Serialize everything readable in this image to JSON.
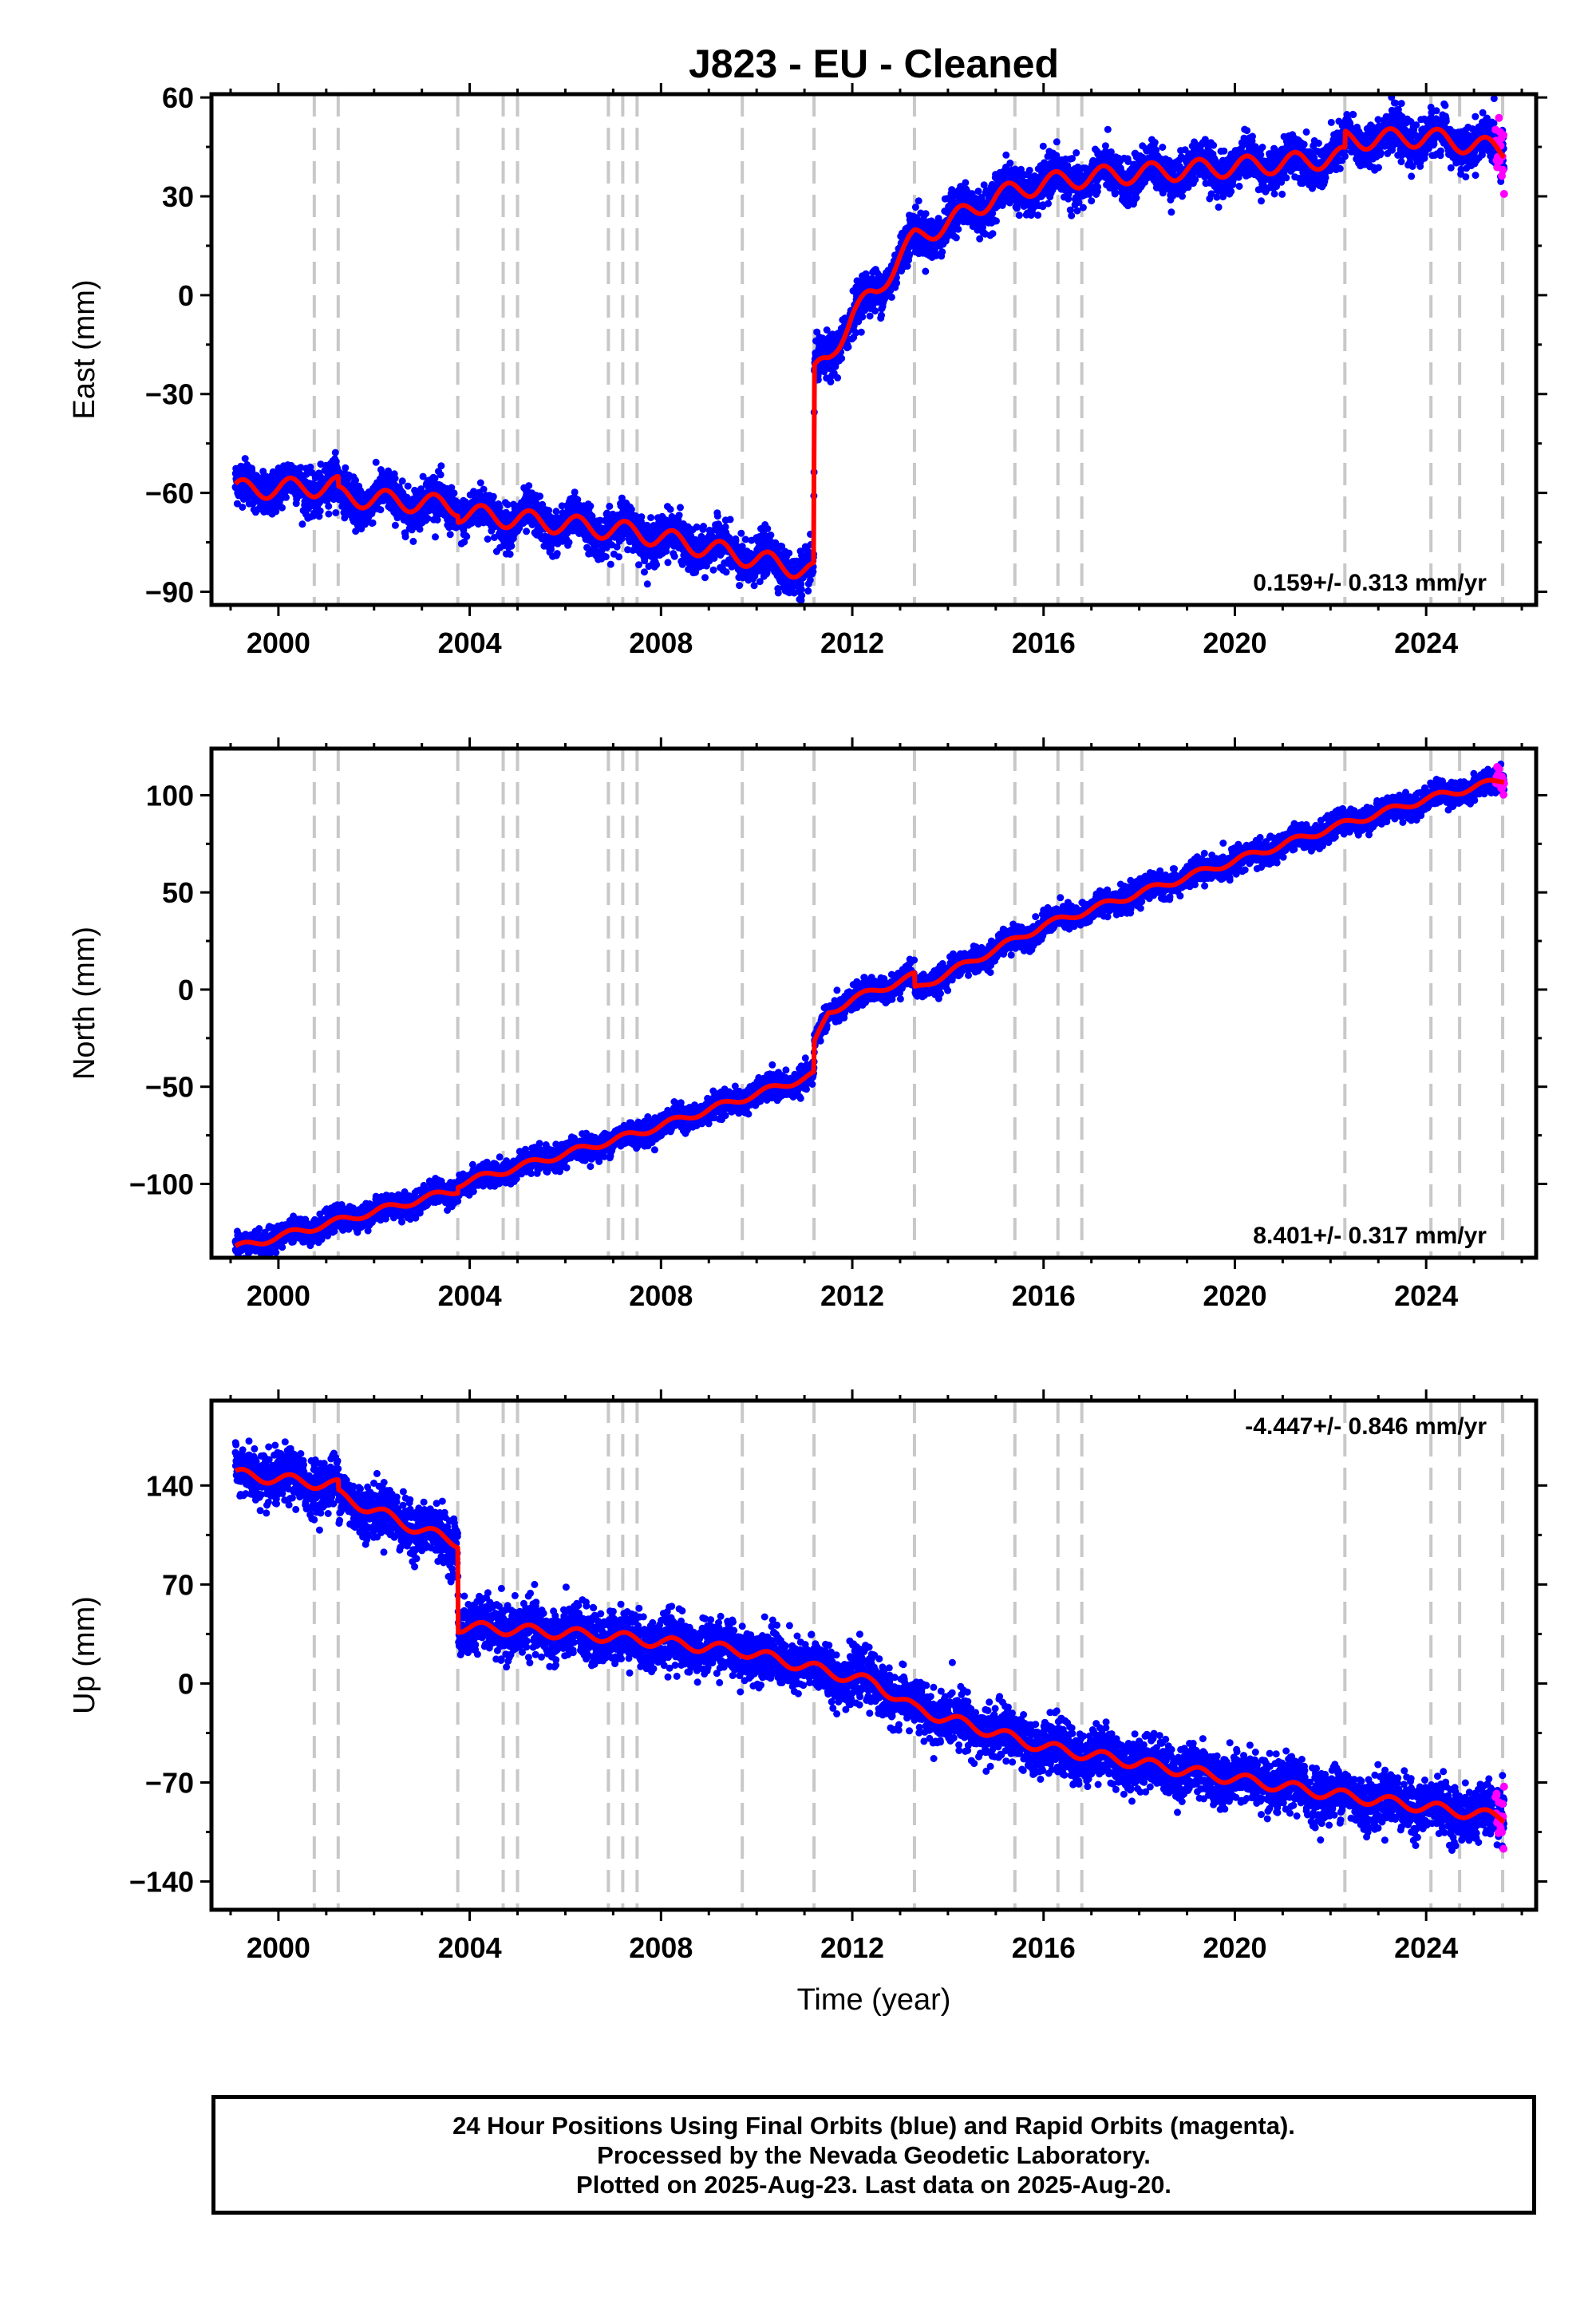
{
  "colors": {
    "final": "#0000ff",
    "rapid": "#ff00ff",
    "model": "#ff0000",
    "breaks": "#c8c8c8"
  },
  "chart_data": {
    "type": "scatter",
    "title": "J823  - EU - Cleaned",
    "xlabel": "Time (year)",
    "xlim": [
      1998.6,
      2026.3
    ],
    "xticks": [
      2000,
      2004,
      2008,
      2012,
      2016,
      2020,
      2024
    ],
    "xtick_labels": [
      "2000",
      "2004",
      "2008",
      "2012",
      "2016",
      "2020",
      "2024"
    ],
    "grid": false,
    "data_start": 1999.1,
    "data_end": 2025.63,
    "rapid_start": 2025.45,
    "breaks": [
      2000.75,
      2001.25,
      2003.75,
      2004.7,
      2005.0,
      2006.9,
      2007.2,
      2007.5,
      2009.7,
      2011.2,
      2013.3,
      2015.4,
      2016.3,
      2016.8,
      2022.3,
      2024.1,
      2024.7,
      2025.6
    ],
    "panels": [
      {
        "key": "east",
        "ylabel": "East (mm)",
        "ylim": [
          -94,
          61
        ],
        "yticks": [
          60,
          30,
          0,
          -30,
          -60,
          -90
        ],
        "ytick_labels": [
          "60",
          "30",
          "0",
          "−30",
          "−60",
          "−90"
        ],
        "rate": "0.159+/- 0.313 mm/yr",
        "rate_position": "bottom-right",
        "noise": 3.2,
        "seasonal": 3.0,
        "trend_knots": [
          [
            1999.1,
            -59
          ],
          [
            2001.25,
            -58
          ],
          [
            2001.26,
            -61
          ],
          [
            2003.75,
            -64
          ],
          [
            2003.76,
            -66
          ],
          [
            2007.5,
            -72
          ],
          [
            2011.19,
            -84
          ],
          [
            2011.21,
            -24
          ],
          [
            2011.5,
            -19
          ],
          [
            2012.0,
            -6
          ],
          [
            2012.5,
            1
          ],
          [
            2013.0,
            12
          ],
          [
            2013.3,
            17
          ],
          [
            2014.0,
            22
          ],
          [
            2015.0,
            30
          ],
          [
            2016.0,
            34
          ],
          [
            2017.0,
            36
          ],
          [
            2019.0,
            38
          ],
          [
            2021.0,
            40
          ],
          [
            2022.3,
            42
          ],
          [
            2022.31,
            47
          ],
          [
            2024.0,
            48
          ],
          [
            2025.63,
            44
          ]
        ]
      },
      {
        "key": "north",
        "ylabel": "North (mm)",
        "ylim": [
          -138,
          124
        ],
        "yticks": [
          100,
          50,
          0,
          -50,
          -100
        ],
        "ytick_labels": [
          "100",
          "50",
          "0",
          "−50",
          "−100"
        ],
        "rate": "8.401+/- 0.317 mm/yr",
        "rate_position": "bottom-right",
        "noise": 3.0,
        "seasonal": 1.8,
        "trend_knots": [
          [
            1999.1,
            -133
          ],
          [
            2003.75,
            -103
          ],
          [
            2003.76,
            -100
          ],
          [
            2007.5,
            -74
          ],
          [
            2011.19,
            -44
          ],
          [
            2011.21,
            -28
          ],
          [
            2011.5,
            -12
          ],
          [
            2012.0,
            -5
          ],
          [
            2013.3,
            7
          ],
          [
            2013.31,
            0
          ],
          [
            2016.0,
            33
          ],
          [
            2019.0,
            58
          ],
          [
            2022.0,
            83
          ],
          [
            2024.0,
            98
          ],
          [
            2025.63,
            108
          ]
        ]
      },
      {
        "key": "up",
        "ylabel": "Up (mm)",
        "ylim": [
          -160,
          200
        ],
        "yticks": [
          140,
          70,
          0,
          -70,
          -140
        ],
        "ytick_labels": [
          "140",
          "70",
          "0",
          "−70",
          "−140"
        ],
        "rate": "-4.447+/- 0.846 mm/yr",
        "rate_position": "top-right",
        "noise": 9.0,
        "seasonal": 4.0,
        "trend_knots": [
          [
            1999.1,
            148
          ],
          [
            2001.25,
            140
          ],
          [
            2001.26,
            133
          ],
          [
            2003.0,
            108
          ],
          [
            2003.75,
            100
          ],
          [
            2003.76,
            40
          ],
          [
            2005.0,
            38
          ],
          [
            2007.0,
            33
          ],
          [
            2009.7,
            23
          ],
          [
            2012.5,
            0
          ],
          [
            2013.3,
            -18
          ],
          [
            2016.0,
            -45
          ],
          [
            2019.0,
            -62
          ],
          [
            2022.0,
            -78
          ],
          [
            2025.63,
            -95
          ]
        ]
      }
    ]
  },
  "footer": {
    "line1": "24 Hour Positions Using Final Orbits (blue) and Rapid Orbits (magenta).",
    "line2": "Processed by the Nevada Geodetic Laboratory.",
    "line3": "Plotted on 2025-Aug-23. Last data on 2025-Aug-20."
  }
}
